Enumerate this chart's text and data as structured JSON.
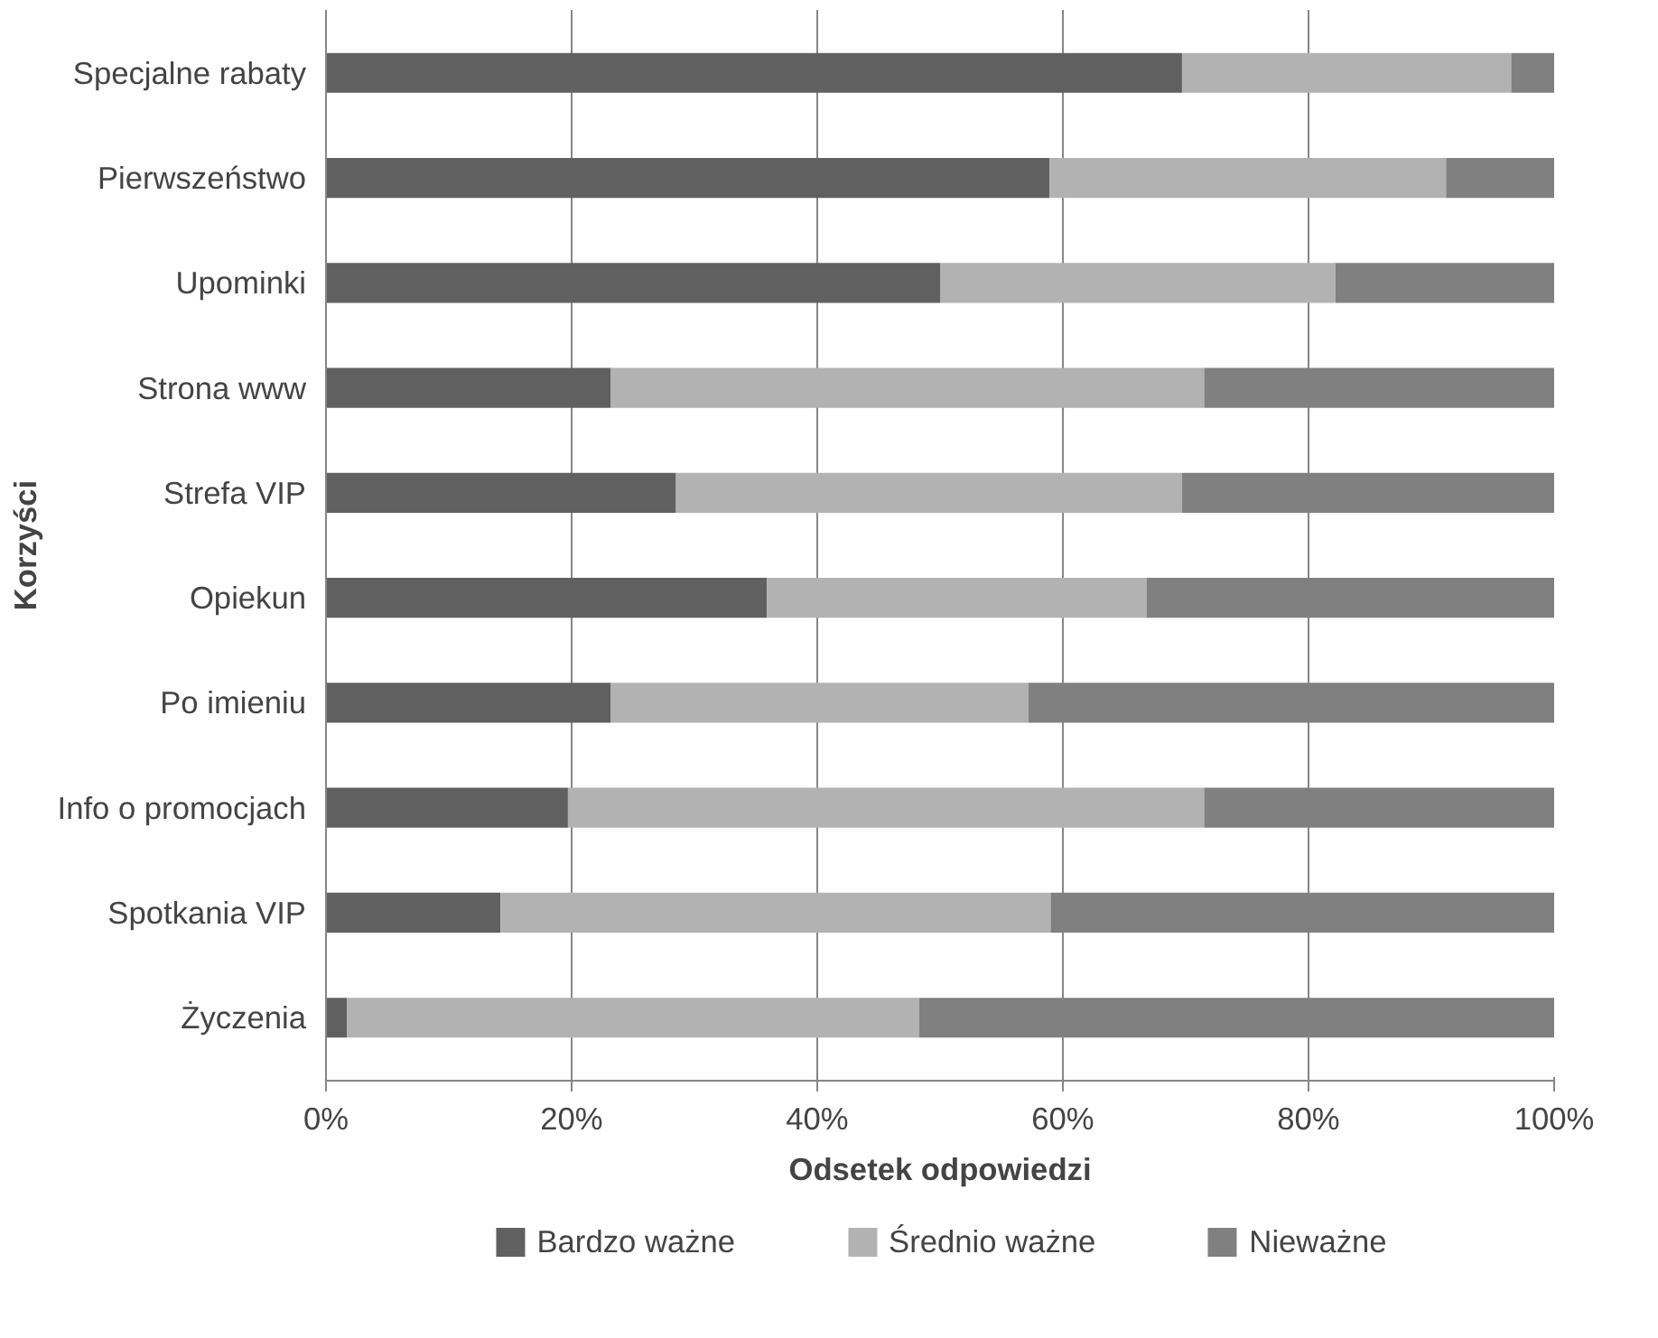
{
  "chart_data": {
    "type": "bar",
    "orientation": "horizontal",
    "stacked": true,
    "xlabel": "Odsetek odpowiedzi",
    "ylabel": "Korzyści",
    "categories": [
      "Specjalne rabaty",
      "Pierwszeństwo",
      "Upominki",
      "Strona www",
      "Strefa VIP",
      "Opiekun",
      "Po imieniu",
      "Info o promocjach",
      "Spotkania VIP",
      "Życzenia"
    ],
    "series": [
      {
        "name": "Bardzo ważne",
        "color": "#606060",
        "values": [
          69.7,
          58.9,
          50.0,
          23.2,
          28.5,
          35.9,
          23.2,
          19.7,
          14.2,
          1.7
        ]
      },
      {
        "name": "Średnio ważne",
        "color": "#b2b2b2",
        "values": [
          26.8,
          32.3,
          32.2,
          48.3,
          41.2,
          30.9,
          34.0,
          51.8,
          44.8,
          46.6
        ]
      },
      {
        "name": "Nieważne",
        "color": "#808080",
        "values": [
          3.5,
          8.8,
          17.8,
          28.5,
          30.3,
          33.2,
          42.8,
          28.5,
          41.0,
          51.7
        ]
      }
    ],
    "xlim": [
      0,
      100
    ],
    "xticks": [
      {
        "value": 0,
        "label": "0%"
      },
      {
        "value": 20,
        "label": "20%"
      },
      {
        "value": 40,
        "label": "40%"
      },
      {
        "value": 60,
        "label": "60%"
      },
      {
        "value": 80,
        "label": "80%"
      },
      {
        "value": 100,
        "label": "100%"
      }
    ],
    "grid": "x",
    "legend": "bottom"
  }
}
